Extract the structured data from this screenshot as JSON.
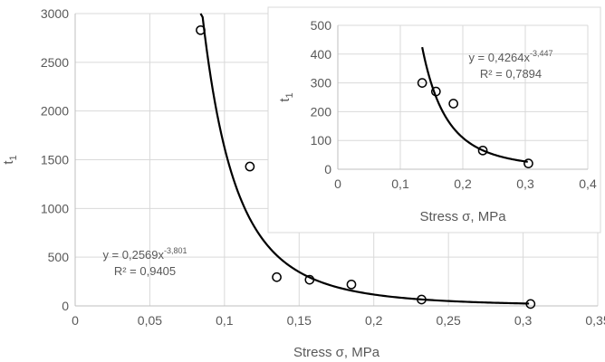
{
  "chart_data": [
    {
      "type": "scatter",
      "xlabel": "Stress σ, MPa",
      "ylabel": "t",
      "ylabel_sub": "1",
      "xlim": [
        0,
        0.35
      ],
      "ylim": [
        0,
        3000
      ],
      "x_ticks": [
        "0",
        "0,05",
        "0,1",
        "0,15",
        "0,2",
        "0,25",
        "0,3",
        "0,35"
      ],
      "y_ticks": [
        "0",
        "500",
        "1000",
        "1500",
        "2000",
        "2500",
        "3000"
      ],
      "grid": true,
      "points": [
        {
          "x": 0.084,
          "y": 2830
        },
        {
          "x": 0.117,
          "y": 1430
        },
        {
          "x": 0.135,
          "y": 295
        },
        {
          "x": 0.157,
          "y": 268
        },
        {
          "x": 0.185,
          "y": 220
        },
        {
          "x": 0.232,
          "y": 65
        },
        {
          "x": 0.305,
          "y": 20
        }
      ],
      "trendline": {
        "type": "power",
        "coef": 0.2569,
        "exp": -3.801,
        "x_from": 0.084,
        "x_to": 0.304,
        "equation_prefix": "y = 0,2569x",
        "equation_exp": "-3,801",
        "r2_label": "R² = 0,9405"
      }
    },
    {
      "type": "scatter",
      "xlabel": "Stress σ, MPa",
      "ylabel": "t",
      "ylabel_sub": "1",
      "xlim": [
        0,
        0.4
      ],
      "ylim": [
        0,
        500
      ],
      "x_ticks": [
        "0",
        "0,1",
        "0,2",
        "0,3",
        "0,4"
      ],
      "y_ticks": [
        "0",
        "100",
        "200",
        "300",
        "400",
        "500"
      ],
      "grid": true,
      "points": [
        {
          "x": 0.135,
          "y": 300
        },
        {
          "x": 0.157,
          "y": 270
        },
        {
          "x": 0.185,
          "y": 228
        },
        {
          "x": 0.232,
          "y": 65
        },
        {
          "x": 0.305,
          "y": 20
        }
      ],
      "trendline": {
        "type": "power",
        "coef": 0.4264,
        "exp": -3.447,
        "x_from": 0.135,
        "x_to": 0.304,
        "equation_prefix": "y = 0,4264x",
        "equation_exp": "-3,447",
        "r2_label": "R² = 0,7894"
      }
    }
  ],
  "colors": {
    "grid": "#d9d9d9",
    "axis": "#bfbfbf",
    "text": "#595959",
    "series": "#000000",
    "border": "#d9d9d9"
  }
}
